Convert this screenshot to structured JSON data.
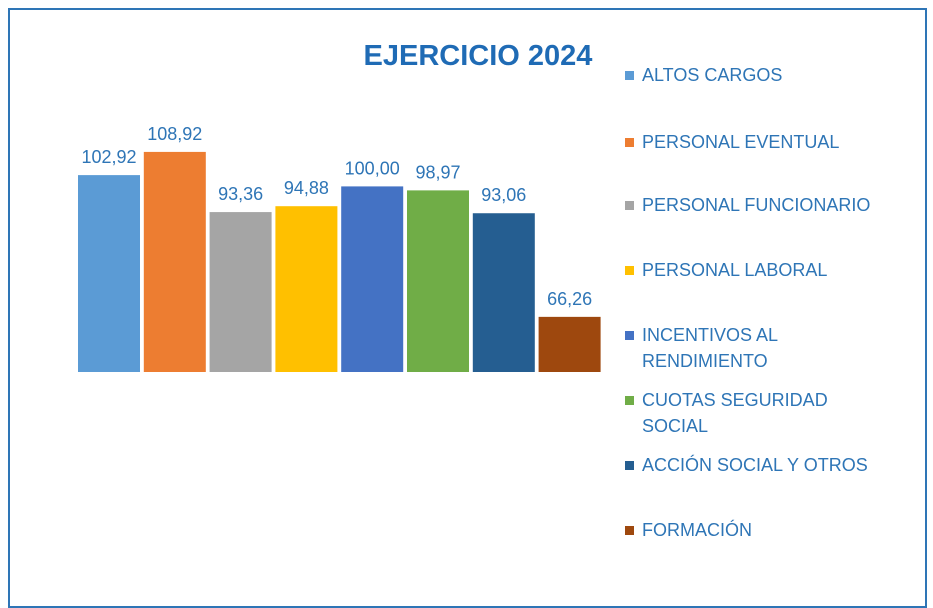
{
  "chart_data": {
    "type": "bar",
    "title": "EJERCICIO 2024",
    "categories": [
      null
    ],
    "ylim": [
      52,
      112
    ],
    "series": [
      {
        "name": "ALTOS CARGOS",
        "color": "#5b9bd5",
        "values": [
          102.92
        ],
        "value_labels": [
          "102,92"
        ]
      },
      {
        "name": "PERSONAL EVENTUAL",
        "color": "#ed7d31",
        "values": [
          108.92
        ],
        "value_labels": [
          "108,92"
        ]
      },
      {
        "name": "PERSONAL FUNCIONARIO",
        "color": "#a5a5a5",
        "values": [
          93.36
        ],
        "value_labels": [
          "93,36"
        ]
      },
      {
        "name": "PERSONAL LABORAL",
        "color": "#ffc000",
        "values": [
          94.88
        ],
        "value_labels": [
          "94,88"
        ]
      },
      {
        "name": "INCENTIVOS AL RENDIMIENTO",
        "color": "#4472c4",
        "values": [
          100.0
        ],
        "value_labels": [
          "100,00"
        ]
      },
      {
        "name": "CUOTAS SEGURIDAD SOCIAL",
        "color": "#70ad47",
        "values": [
          98.97
        ],
        "value_labels": [
          "98,97"
        ]
      },
      {
        "name": "ACCIÓN SOCIAL Y OTROS",
        "color": "#255e91",
        "values": [
          93.06
        ],
        "value_labels": [
          "93,06"
        ]
      },
      {
        "name": "FORMACIÓN",
        "color": "#9e480e",
        "values": [
          66.26
        ],
        "value_labels": [
          "66,26"
        ]
      }
    ]
  }
}
